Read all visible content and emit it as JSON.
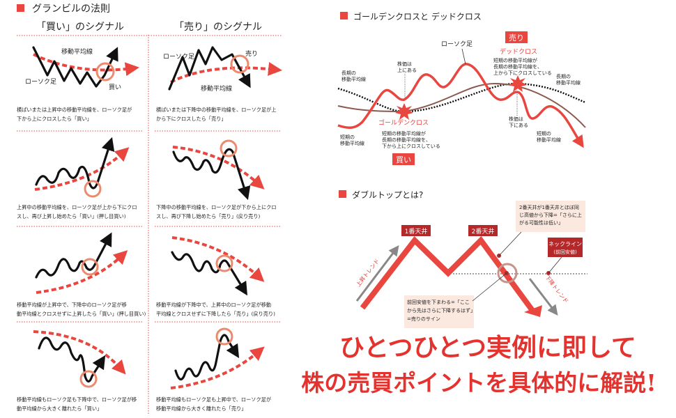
{
  "granville": {
    "title": "グランビルの法則",
    "buy_header": "「買い」のシグナル",
    "sell_header": "「売り」のシグナル",
    "labels": {
      "ma": "移動平均線",
      "candle": "ローソク足",
      "buy": "買い",
      "sell": "売り"
    },
    "buy_captions": [
      [
        "横ばいまたは上昇中の移動平均線を、ローソク足が",
        "下から上にクロスしたら「買い」"
      ],
      [
        "上昇中の移動平均線を、ローソク足が上から下にクロ",
        "スし、再び上昇し始めたら「買い」(押し目買い)"
      ],
      [
        "移動平均線が上昇中で、下降中のローソク足が移",
        "動平均線とクロスせずに上昇したら「買い」(押し目買い)"
      ],
      [
        "移動平均線もローソク足も下降中で、ローソク足が移",
        "動平均線から大きく離れたら「買い」"
      ]
    ],
    "sell_captions": [
      [
        "横ばいまたは下降中の移動平均線を、ローソク足が上",
        "から下にクロスしたら「売り」"
      ],
      [
        "下降中の移動平均線を、ローソク足が下から上にクロ",
        "スし、再び下降し始めたら「売り」(戻り売り)"
      ],
      [
        "移動平均線が下降中で、上昇中のローソク足が移動",
        "平均線とクロスせずに下降したら「売り」(戻り売り)"
      ],
      [
        "移動平均線もローソク足も上昇中で、ローソク足が",
        "移動平均線から大きく離れたら「売り」"
      ]
    ]
  },
  "cross": {
    "title": "ゴールデンクロスと デッドクロス",
    "candle": "ローソク足",
    "sell_badge": "売り",
    "buy_badge": "買い",
    "dead_cross": "デッドクロス",
    "dead_desc": [
      "短期の移動平均線が",
      "長期の移動平均線を、",
      "上から下にクロスしている"
    ],
    "golden_cross": "ゴールデンクロス",
    "golden_desc": [
      "短期の移動平均線が",
      "長期の移動平均線を、",
      "下から上にクロスしている"
    ],
    "above": [
      "株価は",
      "上にある"
    ],
    "below": [
      "株価は",
      "下にある"
    ],
    "long_ma": [
      "長期の",
      "移動平均線"
    ],
    "short_ma": [
      "短期の",
      "移動平均線"
    ]
  },
  "double_top": {
    "title": "ダブルトップとは?",
    "top1": "1番天井",
    "top2": "2番天井",
    "neckline": [
      "ネックライン",
      "(前回安値)"
    ],
    "note_top": [
      "2番天井が1番天井とほぼ同",
      "じ高値から下降=「さらに上",
      "がる可能性は低い」"
    ],
    "note_bottom": [
      "前回安値を下まわる=「ここ",
      "から先はさらに下降するはず」",
      "=売りのサイン"
    ],
    "uptrend": "上昇トレンド",
    "downtrend": "下降トレンド"
  },
  "headline": {
    "line1": "ひとつひとつ実例に即して",
    "line2": "株の売買ポイントを具体的に解説!"
  },
  "colors": {
    "accent": "#e4332e",
    "dark_red": "#b5282a",
    "note_bg": "#fbe9e0",
    "short_ma": "#8a5a50"
  }
}
